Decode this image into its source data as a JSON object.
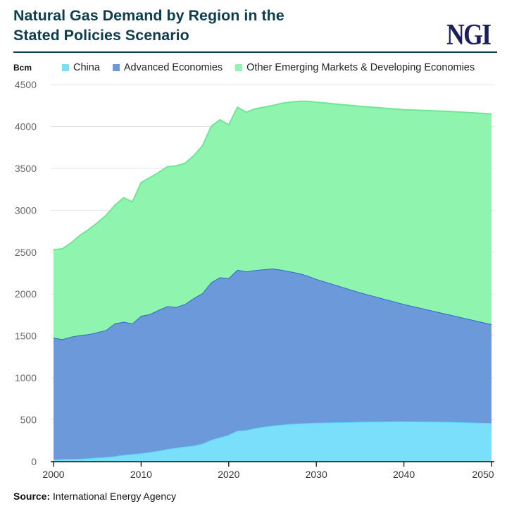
{
  "header": {
    "title_line1": "Natural Gas Demand by Region in the",
    "title_line2": "Stated Policies Scenario",
    "logo": "NGI"
  },
  "source": {
    "label": "Source:",
    "text": "International Energy Agency"
  },
  "chart_data": {
    "type": "area",
    "stacked": true,
    "ylabel": "Bcm",
    "ylim": [
      0,
      4500
    ],
    "xlim": [
      2000,
      2050
    ],
    "yticks": [
      0,
      500,
      1000,
      1500,
      2000,
      2500,
      3000,
      3500,
      4000,
      4500
    ],
    "xticks": [
      2000,
      2010,
      2020,
      2030,
      2040,
      2050
    ],
    "grid": true,
    "legend_placement": "top",
    "x": [
      2000,
      2001,
      2002,
      2003,
      2004,
      2005,
      2006,
      2007,
      2008,
      2009,
      2010,
      2011,
      2012,
      2013,
      2014,
      2015,
      2016,
      2017,
      2018,
      2019,
      2020,
      2021,
      2022,
      2023,
      2024,
      2025,
      2026,
      2027,
      2028,
      2029,
      2030,
      2035,
      2040,
      2045,
      2050
    ],
    "series": [
      {
        "name": "China",
        "color": "#7adffb",
        "line": "#5cd3f7",
        "values": [
          25,
          30,
          32,
          35,
          40,
          48,
          55,
          65,
          80,
          90,
          100,
          115,
          130,
          150,
          165,
          180,
          190,
          215,
          260,
          290,
          320,
          370,
          375,
          400,
          415,
          430,
          440,
          450,
          455,
          460,
          465,
          475,
          480,
          475,
          460
        ]
      },
      {
        "name": "Advanced Economies",
        "color": "#6b99da",
        "line": "#2f6bc8",
        "values": [
          1455,
          1430,
          1458,
          1475,
          1480,
          1497,
          1515,
          1585,
          1590,
          1560,
          1640,
          1645,
          1680,
          1705,
          1680,
          1700,
          1760,
          1795,
          1880,
          1910,
          1870,
          1920,
          1895,
          1885,
          1880,
          1875,
          1850,
          1820,
          1795,
          1760,
          1715,
          1545,
          1400,
          1285,
          1180
        ]
      },
      {
        "name": "Other Emerging Markets & Developing Economies",
        "color": "#8ff5ae",
        "line": "#6fe696",
        "values": [
          1050,
          1080,
          1120,
          1190,
          1250,
          1305,
          1370,
          1410,
          1480,
          1450,
          1590,
          1630,
          1640,
          1665,
          1685,
          1680,
          1700,
          1760,
          1860,
          1880,
          1830,
          1940,
          1900,
          1925,
          1935,
          1945,
          1985,
          2020,
          2050,
          2080,
          2110,
          2220,
          2320,
          2420,
          2510
        ]
      }
    ]
  }
}
